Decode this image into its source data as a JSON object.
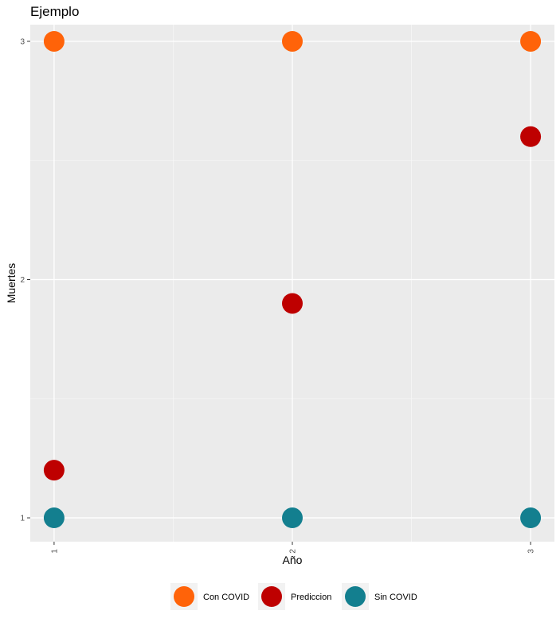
{
  "chart_data": {
    "type": "scatter",
    "title": "Ejemplo",
    "xlabel": "Año",
    "ylabel": "Muertes",
    "xlim": [
      0.9,
      3.1
    ],
    "ylim": [
      0.9,
      3.07
    ],
    "x_ticks": [
      1,
      2,
      3
    ],
    "x_tick_labels": [
      "1",
      "2",
      "3"
    ],
    "y_ticks": [
      1,
      2,
      3
    ],
    "y_tick_labels": [
      "1",
      "2",
      "3"
    ],
    "grid": true,
    "legend_position": "bottom",
    "series": [
      {
        "name": "Con COVID",
        "color": "#FF6309",
        "points": [
          [
            1,
            3
          ],
          [
            2,
            3
          ],
          [
            3,
            3
          ]
        ]
      },
      {
        "name": "Prediccion",
        "color": "#BE0000",
        "points": [
          [
            1,
            1.2
          ],
          [
            2,
            1.9
          ],
          [
            3,
            2.6
          ]
        ]
      },
      {
        "name": "Sin COVID",
        "color": "#137F8F",
        "points": [
          [
            1,
            1
          ],
          [
            2,
            1
          ],
          [
            3,
            1
          ]
        ]
      }
    ]
  }
}
